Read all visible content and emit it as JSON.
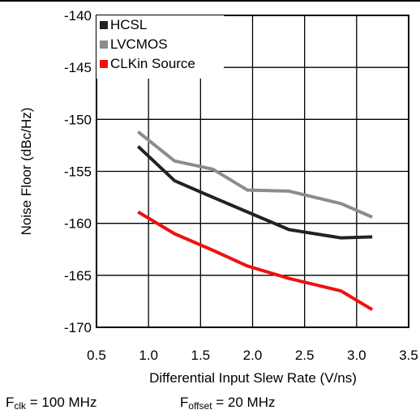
{
  "chart_data": {
    "type": "line",
    "xlabel": "Differential Input Slew Rate (V/ns)",
    "ylabel": "Noise Floor (dBc/Hz)",
    "xlim": [
      0.5,
      3.5
    ],
    "ylim": [
      -170,
      -140
    ],
    "xticks": [
      "0.5",
      "1.0",
      "1.5",
      "2.0",
      "2.5",
      "3.0",
      "3.5"
    ],
    "yticks": [
      "-140",
      "-145",
      "-150",
      "-155",
      "-160",
      "-165",
      "-170"
    ],
    "grid": true,
    "legend_position": "top-left",
    "series": [
      {
        "name": "HCSL",
        "color": "#222222",
        "x": [
          0.9,
          1.25,
          1.62,
          1.95,
          2.35,
          2.85,
          3.15
        ],
        "y": [
          -152.6,
          -155.9,
          -157.5,
          -158.9,
          -160.6,
          -161.4,
          -161.3
        ]
      },
      {
        "name": "LVCMOS",
        "color": "#8c8c8c",
        "x": [
          0.9,
          1.25,
          1.62,
          1.95,
          2.35,
          2.85,
          3.15
        ],
        "y": [
          -151.2,
          -154.0,
          -154.8,
          -156.8,
          -156.9,
          -158.1,
          -159.4
        ]
      },
      {
        "name": "CLKin Source",
        "color": "#ee1111",
        "x": [
          0.9,
          1.25,
          1.62,
          1.95,
          2.35,
          2.85,
          3.15
        ],
        "y": [
          -158.9,
          -161.0,
          -162.6,
          -164.1,
          -165.3,
          -166.5,
          -168.3
        ]
      }
    ]
  },
  "conditions": {
    "fclk_label": "F",
    "fclk_sub": "clk",
    "fclk_value": " = 100 MHz",
    "foffset_label": "F",
    "foffset_sub": "offset",
    "foffset_value": " = 20 MHz"
  }
}
